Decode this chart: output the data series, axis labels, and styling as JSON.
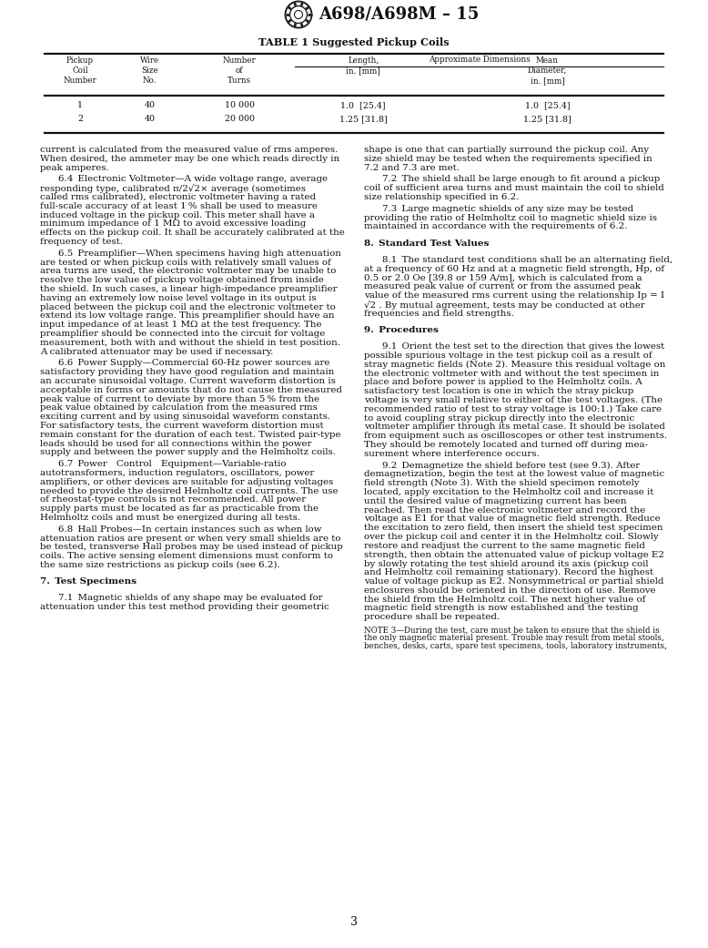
{
  "page_width": 7.78,
  "page_height": 10.41,
  "dpi": 100,
  "bg_color": "#ffffff",
  "header_title": "A698/A698M – 15",
  "page_number": "3",
  "table_title": "TABLE 1 Suggested Pickup Coils",
  "table_data": [
    [
      "1",
      "40",
      "10 000",
      "1.0  [25.4]",
      "1.0  [25.4]"
    ],
    [
      "2",
      "40",
      "20 000",
      "1.25 [31.8]",
      "1.25 [31.8]"
    ]
  ],
  "left_column_text": [
    {
      "text": "current is calculated from the measured value of rms amperes.\nWhen desired, the ammeter may be one which reads directly in\npeak amperes.",
      "style": "normal"
    },
    {
      "text": "6.4 Electronic Voltmeter—A wide voltage range, average\nresponding type, calibrated π/2√2× average (sometimes\ncalled rms calibrated), electronic voltmeter having a rated\nfull-scale accuracy of at least 1 % shall be used to measure\ninduced voltage in the pickup coil. This meter shall have a\nminimum impedance of 1 MΩ to avoid excessive loading\neffects on the pickup coil. It shall be accurately calibrated at the\nfrequency of test.",
      "style": "para"
    },
    {
      "text": "6.5 Preamplifier—When specimens having high attenuation\nare tested or when pickup coils with relatively small values of\narea turns are used, the electronic voltmeter may be unable to\nresolve the low value of pickup voltage obtained from inside\nthe shield. In such cases, a linear high-impedance preamplifier\nhaving an extremely low noise level voltage in its output is\nplaced between the pickup coil and the electronic voltmeter to\nextend its low voltage range. This preamplifier should have an\ninput impedance of at least 1 MΩ at the test frequency. The\npreamplifier should be connected into the circuit for voltage\nmeasurement, both with and without the shield in test position.\nA calibrated attenuator may be used if necessary.",
      "style": "para"
    },
    {
      "text": "6.6 Power Supply—Commercial 60-Hz power sources are\nsatisfactory providing they have good regulation and maintain\nan accurate sinusoidal voltage. Current waveform distortion is\nacceptable in forms or amounts that do not cause the measured\npeak value of current to deviate by more than 5 % from the\npeak value obtained by calculation from the measured rms\nexciting current and by using sinusoidal waveform constants.\nFor satisfactory tests, the current waveform distortion must\nremain constant for the duration of each test. Twisted pair-type\nleads should be used for all connections within the power\nsupply and between the power supply and the Helmholtz coils.",
      "style": "para"
    },
    {
      "text": "6.7 Power Control Equipment—Variable-ratio\nautotransformers, induction regulators, oscillators, power\namplifiers, or other devices are suitable for adjusting voltages\nneeded to provide the desired Helmholtz coil currents. The use\nof rheostat-type controls is not recommended. All power\nsupply parts must be located as far as practicable from the\nHelmholtz coils and must be energized during all tests.",
      "style": "para"
    },
    {
      "text": "6.8 Hall Probes—In certain instances such as when low\nattenuation ratios are present or when very small shields are to\nbe tested, transverse Hall probes may be used instead of pickup\ncoils. The active sensing element dimensions must conform to\nthe same size restrictions as pickup coils (see 6.2).",
      "style": "para"
    },
    {
      "text": "7. Test Specimens",
      "style": "heading"
    },
    {
      "text": "7.1 Magnetic shields of any shape may be evaluated for\nattenuation under this test method providing their geometric",
      "style": "para"
    }
  ],
  "right_column_text": [
    {
      "text": "shape is one that can partially surround the pickup coil. Any\nsize shield may be tested when the requirements specified in\n7.2 and 7.3 are met.",
      "style": "normal"
    },
    {
      "text": "7.2 The shield shall be large enough to fit around a pickup\ncoil of sufficient area turns and must maintain the coil to shield\nsize relationship specified in 6.2.",
      "style": "para"
    },
    {
      "text": "7.3 Large magnetic shields of any size may be tested\nproviding the ratio of Helmholtz coil to magnetic shield size is\nmaintained in accordance with the requirements of 6.2.",
      "style": "para"
    },
    {
      "text": "8. Standard Test Values",
      "style": "heading"
    },
    {
      "text": "8.1 The standard test conditions shall be an alternating field,\nat a frequency of 60 Hz and at a magnetic field strength, Hp, of\n0.5 or 2.0 Oe [39.8 or 159 A/m], which is calculated from a\nmeasured peak value of current or from the assumed peak\nvalue of the measured rms current using the relationship Ip = I\n√2 . By mutual agreement, tests may be conducted at other\nfrequencies and field strengths.",
      "style": "para"
    },
    {
      "text": "9. Procedures",
      "style": "heading"
    },
    {
      "text": "9.1 Orient the test set to the direction that gives the lowest\npossible spurious voltage in the test pickup coil as a result of\nstray magnetic fields (Note 2). Measure this residual voltage on\nthe electronic voltmeter with and without the test specimen in\nplace and before power is applied to the Helmholtz coils. A\nsatisfactory test location is one in which the stray pickup\nvoltage is very small relative to either of the test voltages. (The\nrecommended ratio of test to stray voltage is 100:1.) Take care\nto avoid coupling stray pickup directly into the electronic\nvoltmeter amplifier through its metal case. It should be isolated\nfrom equipment such as oscilloscopes or other test instruments.\nThey should be remotely located and turned off during mea-\nsurement where interference occurs.",
      "style": "para"
    },
    {
      "text": "9.2 Demagnetize the shield before test (see 9.3). After\ndemagnetization, begin the test at the lowest value of magnetic\nfield strength (Note 3). With the shield specimen remotely\nlocated, apply excitation to the Helmholtz coil and increase it\nuntil the desired value of magnetizing current has been\nreached. Then read the electronic voltmeter and record the\nvoltage as E1 for that value of magnetic field strength. Reduce\nthe excitation to zero field, then insert the shield test specimen\nover the pickup coil and center it in the Helmholtz coil. Slowly\nrestore and readjust the current to the same magnetic field\nstrength, then obtain the attenuated value of pickup voltage E2\nby slowly rotating the test shield around its axis (pickup coil\nand Helmholtz coil remaining stationary). Record the highest\nvalue of voltage pickup as E2. Nonsymmetrical or partial shield\nenclosures should be oriented in the direction of use. Remove\nthe shield from the Helmholtz coil. The next higher value of\nmagnetic field strength is now established and the testing\nprocedure shall be repeated.",
      "style": "para"
    },
    {
      "text": "NOTE 3—During the test, care must be taken to ensure that the shield is\nthe only magnetic material present. Trouble may result from metal stools,\nbenches, desks, carts, spare test specimens, tools, laboratory instruments,",
      "style": "note"
    }
  ],
  "link_color": "#cc0000"
}
